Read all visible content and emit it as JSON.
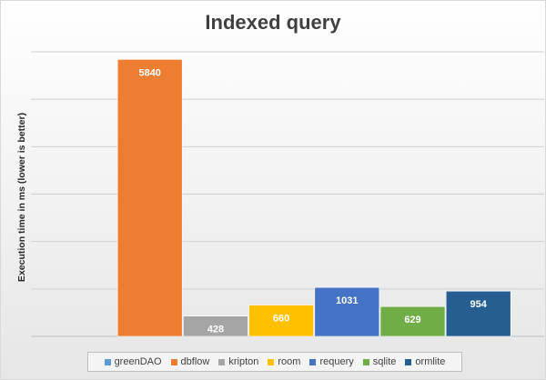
{
  "chart_data": {
    "type": "bar",
    "title": "Indexed query",
    "xlabel": "",
    "ylabel": "Execution time in ms (lower is better)",
    "ylim": [
      0,
      6000
    ],
    "grid": true,
    "legend_position": "bottom",
    "categories": [
      "greenDAO",
      "dbflow",
      "kripton",
      "room",
      "requery",
      "sqlite",
      "ormlite"
    ],
    "series": [
      {
        "name": "greenDAO",
        "value": null,
        "label": "",
        "color": "#5b9bd5"
      },
      {
        "name": "dbflow",
        "value": 5840,
        "label": "5840",
        "color": "#ed7d31"
      },
      {
        "name": "kripton",
        "value": 428,
        "label": "428",
        "color": "#a5a5a5"
      },
      {
        "name": "room",
        "value": 660,
        "label": "660",
        "color": "#ffc000"
      },
      {
        "name": "requery",
        "value": 1031,
        "label": "1031",
        "color": "#4472c4"
      },
      {
        "name": "sqlite",
        "value": 629,
        "label": "629",
        "color": "#70ad47"
      },
      {
        "name": "ormlite",
        "value": 954,
        "label": "954",
        "color": "#255e91"
      }
    ]
  }
}
